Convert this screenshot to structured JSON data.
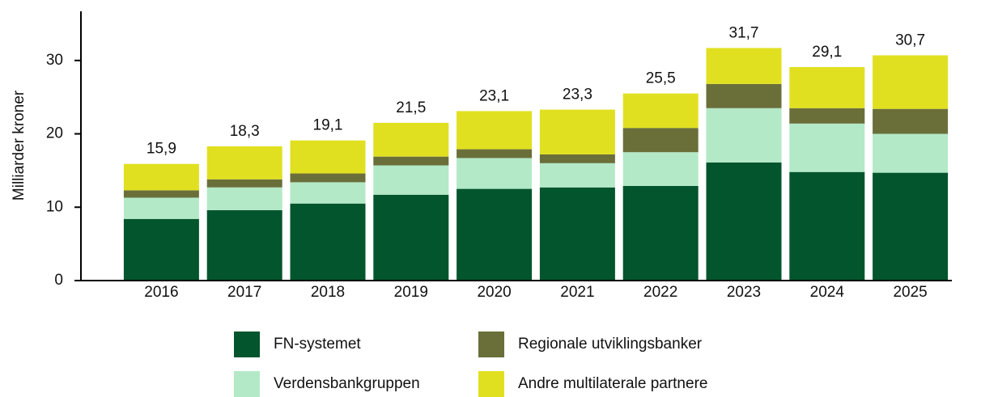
{
  "chart_data": {
    "type": "stacked_bar",
    "y_label": "Milliarder kroner",
    "categories": [
      "2016",
      "2017",
      "2018",
      "2019",
      "2020",
      "2021",
      "2022",
      "2023",
      "2024",
      "2025"
    ],
    "series": [
      {
        "name": "FN-systemet",
        "color": "#03552d",
        "values": [
          8.4,
          9.6,
          10.5,
          11.7,
          12.5,
          12.7,
          12.9,
          16.1,
          14.8,
          14.7
        ]
      },
      {
        "name": "Verdensbankgruppen",
        "color": "#b3e9c7",
        "values": [
          2.9,
          3.1,
          2.9,
          4.0,
          4.2,
          3.3,
          4.6,
          7.4,
          6.6,
          5.3
        ]
      },
      {
        "name": "Regionale utviklingsbanker",
        "color": "#6a6f3a",
        "values": [
          1.0,
          1.1,
          1.2,
          1.2,
          1.2,
          1.2,
          3.3,
          3.3,
          2.1,
          3.4
        ]
      },
      {
        "name": "Andre multilaterale partnere",
        "color": "#e0e020",
        "values": [
          3.6,
          4.5,
          4.5,
          4.6,
          5.2,
          6.1,
          4.7,
          4.9,
          5.6,
          7.3
        ]
      }
    ],
    "totals": [
      15.9,
      18.3,
      19.1,
      21.5,
      23.1,
      23.3,
      25.5,
      31.7,
      29.1,
      30.7
    ],
    "value_labels": [
      "15,9",
      "18,3",
      "19,1",
      "21,5",
      "23,1",
      "23,3",
      "25,5",
      "31,7",
      "29,1",
      "30,7"
    ],
    "ylim": [
      0,
      36.7
    ],
    "yticks": [
      0,
      10,
      20,
      30
    ],
    "grid": false,
    "legend": "bottom"
  }
}
